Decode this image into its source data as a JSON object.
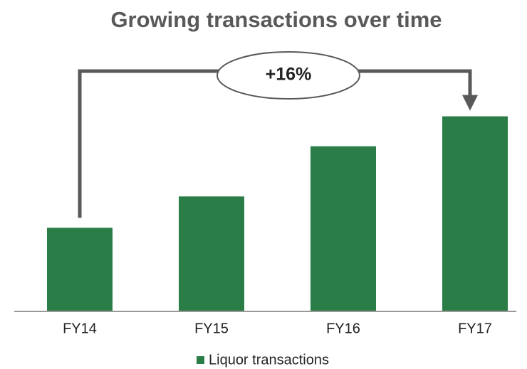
{
  "chart_data": {
    "type": "bar",
    "title": "Growing transactions over time",
    "categories": [
      "FY14",
      "FY15",
      "FY16",
      "FY17"
    ],
    "series": [
      {
        "name": "Liquor transactions",
        "color": "#2a7d46",
        "values": [
          100,
          104.5,
          111.7,
          116
        ]
      }
    ],
    "ylim": [
      88,
      118
    ],
    "annotation": "+16%"
  }
}
